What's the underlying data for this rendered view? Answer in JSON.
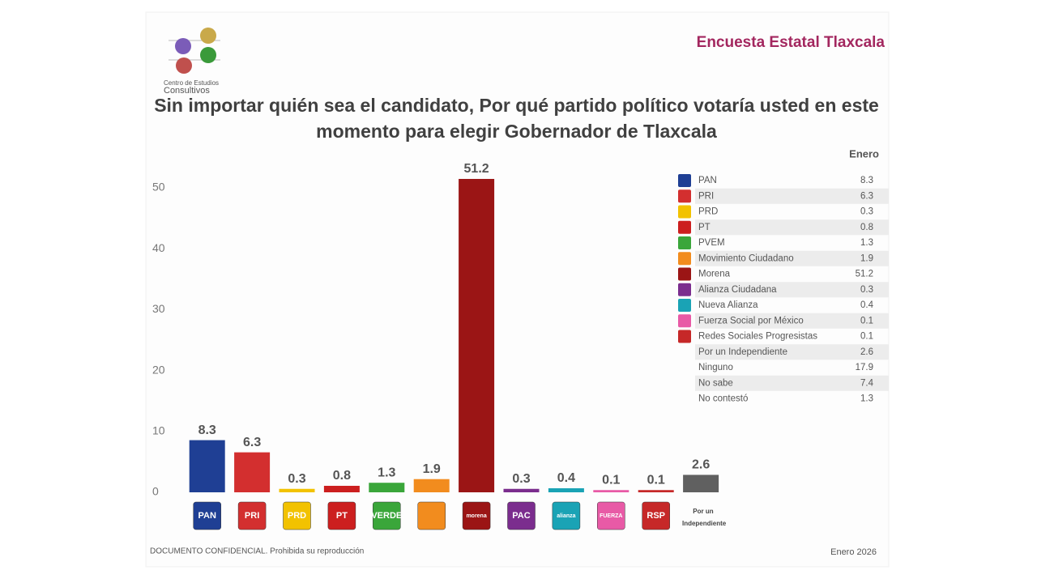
{
  "header": {
    "brand": "Encuesta Estatal Tlaxcala",
    "logo_line1": "Centro de Estudios",
    "logo_line2": "Consultivos"
  },
  "chart_data": {
    "type": "bar",
    "title": "Sin importar quién sea el candidato, Por qué partido político votaría usted en este momento para elegir Gobernador de Tlaxcala",
    "categories": [
      "PAN",
      "PRI",
      "PRD",
      "PT",
      "VERDE",
      null,
      "morena",
      "PAC",
      "alianza",
      "FUERZA",
      "RSP",
      "Por un Independiente"
    ],
    "values": [
      8.3,
      6.3,
      0.3,
      0.8,
      1.3,
      1.9,
      51.2,
      0.3,
      0.4,
      0.1,
      0.1,
      2.6
    ],
    "colors": [
      "#1f3f94",
      "#d32f2f",
      "#f2c200",
      "#cc1f1f",
      "#3aa63a",
      "#f28c1e",
      "#9b1515",
      "#7b2d8e",
      "#1aa3b5",
      "#e85aa6",
      "#c62828",
      "#606060"
    ],
    "ylim": [
      0,
      55
    ],
    "yticks": [
      0,
      10,
      20,
      30,
      40,
      50
    ],
    "grid": false
  },
  "table": {
    "header": "Enero",
    "rows": [
      [
        "PAN",
        8.3
      ],
      [
        "PRI",
        6.3
      ],
      [
        "PRD",
        0.3
      ],
      [
        "PT",
        0.8
      ],
      [
        "PVEM",
        1.3
      ],
      [
        "Movimiento Ciudadano",
        1.9
      ],
      [
        "Morena",
        51.2
      ],
      [
        "Alianza Ciudadana",
        0.3
      ],
      [
        "Nueva Alianza",
        0.4
      ],
      [
        "Fuerza Social por México",
        0.1
      ],
      [
        "Redes Sociales Progresistas",
        0.1
      ],
      [
        "Por un Independiente",
        2.6
      ],
      [
        "Ninguno",
        17.9
      ],
      [
        "No sabe",
        7.4
      ],
      [
        "No contestó",
        1.3
      ]
    ]
  },
  "footer": {
    "left": "DOCUMENTO CONFIDENCIAL. Prohibida su reproducción",
    "right": "Enero 2026"
  }
}
